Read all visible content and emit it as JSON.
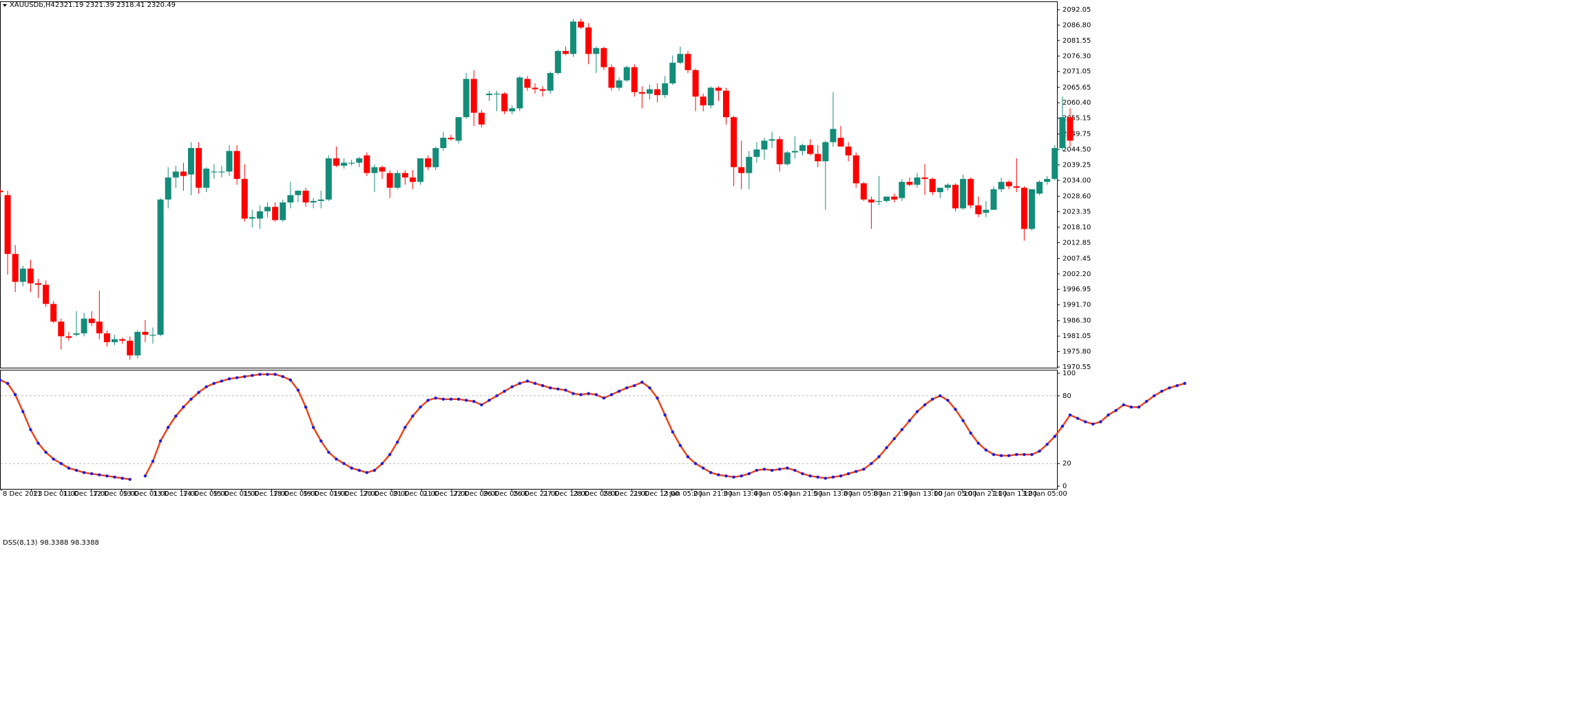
{
  "main_header": {
    "symbol_timeframe": "XAUUSDb,H4",
    "ohlc": "2321.19 2321.39 2318.41 2320.49"
  },
  "indicator_header": {
    "name": "DSS(8,13)",
    "values": "98.3388 98.3388"
  },
  "colors": {
    "bull": "#138c79",
    "bear": "#ff0000",
    "dss_line": "#e8441a",
    "dss_dots": "#1a1ae6",
    "level_lines": "#b8b8b8",
    "axis": "#000000"
  },
  "chart_data": [
    {
      "type": "candlestick",
      "symbol": "XAUUSDb",
      "timeframe": "H4",
      "y_axis_ticks": [
        "2092.05",
        "2086.80",
        "2081.55",
        "2076.30",
        "2071.05",
        "2065.65",
        "2060.40",
        "2055.15",
        "2049.75",
        "2044.50",
        "2039.25",
        "2034.00",
        "2028.60",
        "2023.35",
        "2018.10",
        "2012.85",
        "2007.45",
        "2002.20",
        "1996.95",
        "1991.70",
        "1986.30",
        "1981.05",
        "1975.80",
        "1970.55"
      ],
      "ylim": [
        1970.55,
        2094.4
      ],
      "grid": false,
      "candles": [
        {
          "o": 2030.5,
          "h": 2031.5,
          "l": 2028.5,
          "c": 2030.0
        },
        {
          "o": 2029.0,
          "h": 2030.5,
          "l": 2002.0,
          "c": 2009.0
        },
        {
          "o": 2009.0,
          "h": 2012.0,
          "l": 1996.0,
          "c": 1999.5
        },
        {
          "o": 1999.5,
          "h": 2005.0,
          "l": 1998.0,
          "c": 2004.0
        },
        {
          "o": 2004.0,
          "h": 2007.0,
          "l": 1996.0,
          "c": 1999.0
        },
        {
          "o": 1999.0,
          "h": 2000.5,
          "l": 1994.0,
          "c": 1998.5
        },
        {
          "o": 1998.5,
          "h": 2000.0,
          "l": 1991.0,
          "c": 1992.0
        },
        {
          "o": 1992.0,
          "h": 1993.0,
          "l": 1985.5,
          "c": 1986.0
        },
        {
          "o": 1986.0,
          "h": 1987.0,
          "l": 1976.5,
          "c": 1981.0
        },
        {
          "o": 1981.0,
          "h": 1982.5,
          "l": 1979.5,
          "c": 1980.5
        },
        {
          "o": 1981.5,
          "h": 1989.5,
          "l": 1981.0,
          "c": 1982.0
        },
        {
          "o": 1982.0,
          "h": 1989.0,
          "l": 1981.0,
          "c": 1987.0
        },
        {
          "o": 1987.0,
          "h": 1989.5,
          "l": 1984.5,
          "c": 1985.5
        },
        {
          "o": 1986.0,
          "h": 1996.5,
          "l": 1980.0,
          "c": 1982.0
        },
        {
          "o": 1982.0,
          "h": 1983.0,
          "l": 1977.5,
          "c": 1979.0
        },
        {
          "o": 1979.0,
          "h": 1981.5,
          "l": 1978.0,
          "c": 1980.0
        },
        {
          "o": 1980.0,
          "h": 1980.5,
          "l": 1978.5,
          "c": 1979.5
        },
        {
          "o": 1979.5,
          "h": 1981.0,
          "l": 1973.0,
          "c": 1974.5
        },
        {
          "o": 1974.5,
          "h": 1983.0,
          "l": 1973.5,
          "c": 1982.5
        },
        {
          "o": 1982.5,
          "h": 1986.5,
          "l": 1979.0,
          "c": 1981.5
        },
        {
          "o": 1981.5,
          "h": 1984.0,
          "l": 1978.5,
          "c": 1981.5
        },
        {
          "o": 1981.5,
          "h": 2028.0,
          "l": 1981.0,
          "c": 2027.5
        },
        {
          "o": 2027.5,
          "h": 2038.5,
          "l": 2024.5,
          "c": 2035.0
        },
        {
          "o": 2035.0,
          "h": 2039.0,
          "l": 2031.5,
          "c": 2037.0
        },
        {
          "o": 2037.0,
          "h": 2040.0,
          "l": 2030.5,
          "c": 2035.5
        },
        {
          "o": 2036.0,
          "h": 2047.0,
          "l": 2029.0,
          "c": 2045.0
        },
        {
          "o": 2045.0,
          "h": 2047.0,
          "l": 2029.5,
          "c": 2031.5
        },
        {
          "o": 2031.5,
          "h": 2038.5,
          "l": 2030.0,
          "c": 2038.0
        },
        {
          "o": 2037.0,
          "h": 2039.5,
          "l": 2034.5,
          "c": 2037.0
        },
        {
          "o": 2037.0,
          "h": 2039.0,
          "l": 2035.0,
          "c": 2037.0
        },
        {
          "o": 2037.0,
          "h": 2046.0,
          "l": 2035.5,
          "c": 2044.0
        },
        {
          "o": 2044.0,
          "h": 2046.0,
          "l": 2032.5,
          "c": 2034.5
        },
        {
          "o": 2034.5,
          "h": 2039.5,
          "l": 2020.0,
          "c": 2021.0
        },
        {
          "o": 2021.0,
          "h": 2024.0,
          "l": 2018.0,
          "c": 2021.5
        },
        {
          "o": 2021.0,
          "h": 2025.5,
          "l": 2017.5,
          "c": 2023.5
        },
        {
          "o": 2023.5,
          "h": 2026.5,
          "l": 2021.5,
          "c": 2025.0
        },
        {
          "o": 2025.0,
          "h": 2026.5,
          "l": 2020.0,
          "c": 2020.5
        },
        {
          "o": 2020.5,
          "h": 2027.5,
          "l": 2020.0,
          "c": 2026.5
        },
        {
          "o": 2026.5,
          "h": 2033.5,
          "l": 2024.5,
          "c": 2029.0
        },
        {
          "o": 2029.0,
          "h": 2030.0,
          "l": 2026.5,
          "c": 2030.5
        },
        {
          "o": 2030.5,
          "h": 2031.5,
          "l": 2025.0,
          "c": 2026.5
        },
        {
          "o": 2026.5,
          "h": 2028.0,
          "l": 2024.5,
          "c": 2027.0
        },
        {
          "o": 2027.0,
          "h": 2030.5,
          "l": 2024.5,
          "c": 2027.5
        },
        {
          "o": 2027.5,
          "h": 2042.5,
          "l": 2027.0,
          "c": 2041.5
        },
        {
          "o": 2041.5,
          "h": 2045.5,
          "l": 2038.5,
          "c": 2039.0
        },
        {
          "o": 2039.0,
          "h": 2041.5,
          "l": 2038.0,
          "c": 2040.0
        },
        {
          "o": 2040.0,
          "h": 2041.0,
          "l": 2039.0,
          "c": 2040.0
        },
        {
          "o": 2040.0,
          "h": 2042.0,
          "l": 2038.5,
          "c": 2041.5
        },
        {
          "o": 2042.5,
          "h": 2043.5,
          "l": 2035.5,
          "c": 2036.5
        },
        {
          "o": 2036.5,
          "h": 2039.5,
          "l": 2030.0,
          "c": 2038.5
        },
        {
          "o": 2038.5,
          "h": 2039.0,
          "l": 2034.5,
          "c": 2037.0
        },
        {
          "o": 2036.5,
          "h": 2037.5,
          "l": 2028.0,
          "c": 2031.5
        },
        {
          "o": 2031.5,
          "h": 2037.5,
          "l": 2031.0,
          "c": 2036.5
        },
        {
          "o": 2036.5,
          "h": 2037.5,
          "l": 2032.5,
          "c": 2035.0
        },
        {
          "o": 2035.0,
          "h": 2037.5,
          "l": 2031.0,
          "c": 2033.5
        },
        {
          "o": 2033.5,
          "h": 2041.5,
          "l": 2032.5,
          "c": 2041.5
        },
        {
          "o": 2041.5,
          "h": 2042.5,
          "l": 2037.5,
          "c": 2038.5
        },
        {
          "o": 2038.5,
          "h": 2045.5,
          "l": 2037.5,
          "c": 2045.0
        },
        {
          "o": 2045.0,
          "h": 2050.5,
          "l": 2044.0,
          "c": 2048.5
        },
        {
          "o": 2048.5,
          "h": 2049.5,
          "l": 2047.5,
          "c": 2048.0
        },
        {
          "o": 2047.5,
          "h": 2055.5,
          "l": 2046.5,
          "c": 2055.5
        },
        {
          "o": 2055.5,
          "h": 2070.5,
          "l": 2055.0,
          "c": 2068.5
        },
        {
          "o": 2068.5,
          "h": 2071.5,
          "l": 2052.5,
          "c": 2057.0
        },
        {
          "o": 2057.0,
          "h": 2058.0,
          "l": 2052.0,
          "c": 2053.0
        },
        {
          "o": 2063.0,
          "h": 2064.5,
          "l": 2061.0,
          "c": 2063.5
        },
        {
          "o": 2063.5,
          "h": 2064.5,
          "l": 2057.5,
          "c": 2063.5
        },
        {
          "o": 2063.5,
          "h": 2064.0,
          "l": 2056.5,
          "c": 2057.5
        },
        {
          "o": 2057.5,
          "h": 2059.5,
          "l": 2056.5,
          "c": 2058.5
        },
        {
          "o": 2058.5,
          "h": 2069.5,
          "l": 2057.5,
          "c": 2069.0
        },
        {
          "o": 2068.5,
          "h": 2069.5,
          "l": 2064.5,
          "c": 2065.5
        },
        {
          "o": 2065.5,
          "h": 2067.0,
          "l": 2063.5,
          "c": 2065.0
        },
        {
          "o": 2065.0,
          "h": 2066.0,
          "l": 2062.5,
          "c": 2064.5
        },
        {
          "o": 2064.5,
          "h": 2071.0,
          "l": 2063.5,
          "c": 2070.5
        },
        {
          "o": 2070.5,
          "h": 2078.5,
          "l": 2070.0,
          "c": 2078.0
        },
        {
          "o": 2078.0,
          "h": 2079.5,
          "l": 2076.5,
          "c": 2077.0
        },
        {
          "o": 2077.0,
          "h": 2089.0,
          "l": 2076.0,
          "c": 2088.0
        },
        {
          "o": 2088.0,
          "h": 2089.0,
          "l": 2085.5,
          "c": 2086.0
        },
        {
          "o": 2086.0,
          "h": 2087.5,
          "l": 2073.5,
          "c": 2077.0
        },
        {
          "o": 2077.0,
          "h": 2079.5,
          "l": 2070.5,
          "c": 2079.0
        },
        {
          "o": 2079.0,
          "h": 2079.5,
          "l": 2071.5,
          "c": 2072.5
        },
        {
          "o": 2072.5,
          "h": 2073.5,
          "l": 2064.5,
          "c": 2065.5
        },
        {
          "o": 2065.5,
          "h": 2069.0,
          "l": 2064.5,
          "c": 2068.0
        },
        {
          "o": 2068.0,
          "h": 2073.0,
          "l": 2067.5,
          "c": 2072.5
        },
        {
          "o": 2072.5,
          "h": 2073.5,
          "l": 2062.5,
          "c": 2064.0
        },
        {
          "o": 2064.0,
          "h": 2066.0,
          "l": 2058.5,
          "c": 2063.5
        },
        {
          "o": 2063.5,
          "h": 2066.5,
          "l": 2061.5,
          "c": 2065.0
        },
        {
          "o": 2065.0,
          "h": 2067.0,
          "l": 2060.5,
          "c": 2063.0
        },
        {
          "o": 2063.0,
          "h": 2069.5,
          "l": 2062.0,
          "c": 2067.0
        },
        {
          "o": 2067.0,
          "h": 2076.5,
          "l": 2066.5,
          "c": 2074.0
        },
        {
          "o": 2074.0,
          "h": 2079.5,
          "l": 2073.5,
          "c": 2077.0
        },
        {
          "o": 2077.0,
          "h": 2078.0,
          "l": 2070.5,
          "c": 2071.5
        },
        {
          "o": 2071.5,
          "h": 2072.0,
          "l": 2057.5,
          "c": 2062.5
        },
        {
          "o": 2062.5,
          "h": 2063.5,
          "l": 2057.5,
          "c": 2059.5
        },
        {
          "o": 2059.5,
          "h": 2066.0,
          "l": 2058.5,
          "c": 2065.5
        },
        {
          "o": 2065.5,
          "h": 2066.0,
          "l": 2061.0,
          "c": 2064.5
        },
        {
          "o": 2064.5,
          "h": 2065.5,
          "l": 2053.0,
          "c": 2055.5
        },
        {
          "o": 2055.5,
          "h": 2056.0,
          "l": 2032.0,
          "c": 2038.5
        },
        {
          "o": 2038.5,
          "h": 2047.5,
          "l": 2031.0,
          "c": 2036.5
        },
        {
          "o": 2036.5,
          "h": 2044.0,
          "l": 2031.0,
          "c": 2042.0
        },
        {
          "o": 2042.0,
          "h": 2047.0,
          "l": 2040.0,
          "c": 2044.5
        },
        {
          "o": 2044.5,
          "h": 2048.5,
          "l": 2041.0,
          "c": 2047.5
        },
        {
          "o": 2047.5,
          "h": 2050.5,
          "l": 2045.0,
          "c": 2048.0
        },
        {
          "o": 2048.0,
          "h": 2049.0,
          "l": 2037.0,
          "c": 2039.5
        },
        {
          "o": 2039.5,
          "h": 2044.0,
          "l": 2039.0,
          "c": 2043.5
        },
        {
          "o": 2043.5,
          "h": 2049.0,
          "l": 2041.5,
          "c": 2044.0
        },
        {
          "o": 2044.0,
          "h": 2046.5,
          "l": 2042.5,
          "c": 2046.0
        },
        {
          "o": 2046.0,
          "h": 2048.0,
          "l": 2042.5,
          "c": 2043.0
        },
        {
          "o": 2043.0,
          "h": 2046.0,
          "l": 2038.5,
          "c": 2040.5
        },
        {
          "o": 2040.5,
          "h": 2047.5,
          "l": 2024.0,
          "c": 2047.0
        },
        {
          "o": 2047.0,
          "h": 2064.0,
          "l": 2045.5,
          "c": 2051.5
        },
        {
          "o": 2048.5,
          "h": 2052.5,
          "l": 2045.5,
          "c": 2045.5
        },
        {
          "o": 2045.5,
          "h": 2047.0,
          "l": 2040.5,
          "c": 2042.5
        },
        {
          "o": 2042.5,
          "h": 2043.5,
          "l": 2031.5,
          "c": 2033.0
        },
        {
          "o": 2033.0,
          "h": 2033.5,
          "l": 2027.0,
          "c": 2027.5
        },
        {
          "o": 2027.5,
          "h": 2028.5,
          "l": 2017.5,
          "c": 2026.5
        },
        {
          "o": 2027.0,
          "h": 2035.5,
          "l": 2025.5,
          "c": 2027.0
        },
        {
          "o": 2027.0,
          "h": 2028.5,
          "l": 2026.5,
          "c": 2028.5
        },
        {
          "o": 2028.5,
          "h": 2029.5,
          "l": 2026.5,
          "c": 2027.5
        },
        {
          "o": 2028.0,
          "h": 2034.5,
          "l": 2027.0,
          "c": 2033.5
        },
        {
          "o": 2033.5,
          "h": 2035.0,
          "l": 2032.0,
          "c": 2032.5
        },
        {
          "o": 2032.5,
          "h": 2036.5,
          "l": 2031.5,
          "c": 2035.0
        },
        {
          "o": 2035.0,
          "h": 2039.5,
          "l": 2029.0,
          "c": 2034.5
        },
        {
          "o": 2034.5,
          "h": 2035.0,
          "l": 2029.0,
          "c": 2030.0
        },
        {
          "o": 2030.0,
          "h": 2031.5,
          "l": 2028.0,
          "c": 2031.5
        },
        {
          "o": 2031.5,
          "h": 2033.0,
          "l": 2030.5,
          "c": 2032.5
        },
        {
          "o": 2032.5,
          "h": 2033.0,
          "l": 2023.5,
          "c": 2024.5
        },
        {
          "o": 2024.5,
          "h": 2036.0,
          "l": 2024.0,
          "c": 2034.5
        },
        {
          "o": 2034.5,
          "h": 2035.0,
          "l": 2024.5,
          "c": 2025.5
        },
        {
          "o": 2025.5,
          "h": 2028.5,
          "l": 2021.5,
          "c": 2022.5
        },
        {
          "o": 2023.0,
          "h": 2027.0,
          "l": 2021.5,
          "c": 2024.0
        },
        {
          "o": 2024.0,
          "h": 2032.0,
          "l": 2024.0,
          "c": 2031.0
        },
        {
          "o": 2031.0,
          "h": 2035.0,
          "l": 2030.0,
          "c": 2033.5
        },
        {
          "o": 2033.5,
          "h": 2034.0,
          "l": 2031.0,
          "c": 2032.0
        },
        {
          "o": 2032.0,
          "h": 2041.5,
          "l": 2030.0,
          "c": 2031.5
        },
        {
          "o": 2031.5,
          "h": 2032.0,
          "l": 2013.5,
          "c": 2017.5
        },
        {
          "o": 2017.5,
          "h": 2031.0,
          "l": 2017.0,
          "c": 2031.0
        },
        {
          "o": 2029.5,
          "h": 2034.0,
          "l": 2029.0,
          "c": 2033.5
        },
        {
          "o": 2033.5,
          "h": 2035.5,
          "l": 2032.5,
          "c": 2034.5
        },
        {
          "o": 2034.5,
          "h": 2046.0,
          "l": 2034.0,
          "c": 2045.0
        },
        {
          "o": 2045.0,
          "h": 2062.5,
          "l": 2044.0,
          "c": 2055.5
        },
        {
          "o": 2055.5,
          "h": 2058.5,
          "l": 2045.5,
          "c": 2047.5
        }
      ]
    },
    {
      "type": "line",
      "name": "DSS(8,13)",
      "ylim": [
        0,
        100
      ],
      "levels": [
        20,
        80
      ],
      "y_axis_ticks": [
        "100",
        "80",
        "20",
        "0"
      ],
      "x_tick_labels": [
        "8 Dec 2023",
        "11 Dec 01:00",
        "11 Dec 17:00",
        "12 Dec 09:00",
        "13 Dec 01:00",
        "13 Dec 17:00",
        "14 Dec 09:00",
        "15 Dec 01:00",
        "15 Dec 17:00",
        "18 Dec 09:00",
        "19 Dec 01:00",
        "19 Dec 17:00",
        "20 Dec 09:00",
        "21 Dec 01:00",
        "21 Dec 17:00",
        "22 Dec 09:00",
        "26 Dec 05:00",
        "26 Dec 21:00",
        "27 Dec 13:00",
        "28 Dec 05:00",
        "28 Dec 21:00",
        "29 Dec 13:00",
        "2 Jan 05:00",
        "2 Jan 21:00",
        "3 Jan 13:00",
        "4 Jan 05:00",
        "4 Jan 21:00",
        "5 Jan 13:00",
        "8 Jan 05:00",
        "8 Jan 21:00",
        "9 Jan 13:00",
        "10 Jan 05:00",
        "10 Jan 21:00",
        "11 Jan 13:00",
        "12 Jan 05:00"
      ],
      "values": [
        94,
        91,
        81,
        66,
        50,
        38,
        30,
        24,
        20,
        16,
        14,
        12,
        11,
        10,
        9,
        8,
        7,
        6,
        null,
        9,
        22,
        40,
        52,
        62,
        70,
        77,
        83,
        88,
        91,
        93,
        95,
        96,
        97,
        98,
        99,
        99,
        99,
        97,
        94,
        85,
        70,
        52,
        40,
        30,
        24,
        20,
        16,
        14,
        12,
        14,
        20,
        28,
        39,
        52,
        62,
        70,
        76,
        78,
        77,
        77,
        77,
        76,
        75,
        72,
        76,
        80,
        84,
        88,
        91,
        93,
        91,
        89,
        87,
        86,
        85,
        82,
        81,
        82,
        81,
        78,
        81,
        84,
        87,
        89,
        92,
        87,
        78,
        63,
        48,
        36,
        26,
        20,
        16,
        12,
        10,
        9,
        8,
        9,
        11,
        14,
        15,
        14,
        15,
        16,
        14,
        11,
        9,
        8,
        7,
        8,
        9,
        11,
        13,
        15,
        20,
        26,
        34,
        42,
        50,
        58,
        66,
        72,
        77,
        80,
        76,
        68,
        58,
        47,
        38,
        32,
        28,
        27,
        27,
        28,
        28,
        28,
        31,
        37,
        44,
        53,
        63,
        60,
        57,
        55,
        57,
        63,
        67,
        72,
        70,
        70,
        75,
        80,
        84,
        87,
        89,
        91
      ]
    }
  ]
}
